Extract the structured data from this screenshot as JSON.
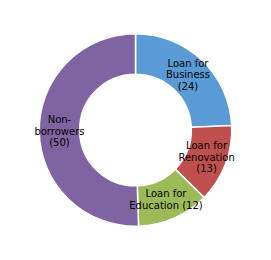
{
  "chart_data": {
    "type": "donut",
    "categories": [
      "Loan for\nBusiness\n(24)",
      "Loan for\nRenovation\n(13)",
      "Loan for\nEducation (12)",
      "Non-\nborrowers\n(50)"
    ],
    "values": [
      24,
      13,
      12,
      50
    ],
    "colors": [
      "#5b9bd5",
      "#c0504d",
      "#9bbb59",
      "#8064a2"
    ]
  }
}
